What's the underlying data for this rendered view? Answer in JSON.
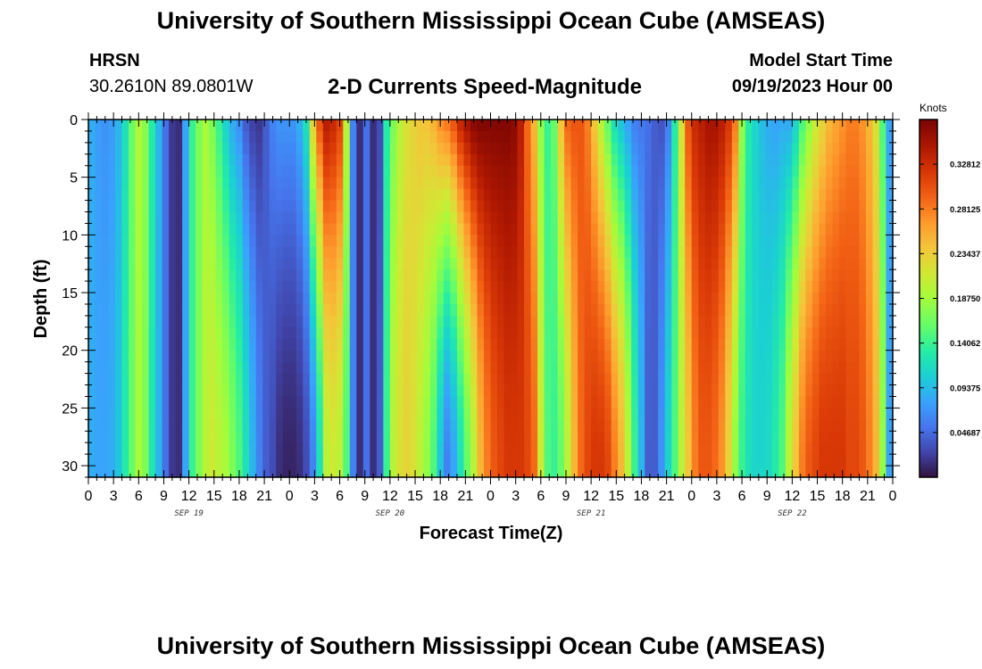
{
  "header": {
    "title": "University of Southern Mississippi Ocean Cube (AMSEAS)",
    "station_id": "HRSN",
    "station_coords": "30.2610N  89.0801W",
    "model_start_label": "Model Start Time",
    "model_start_value": "09/19/2023 Hour 00"
  },
  "footer": {
    "title_repeat": "University of Southern Mississippi Ocean Cube (AMSEAS)"
  },
  "chart_data": {
    "type": "heatmap",
    "title": "2-D Currents Speed-Magnitude",
    "xlabel": "Forecast Time(Z)",
    "ylabel": "Depth (ft)",
    "x_range_hours": [
      0,
      96
    ],
    "y_range_ft": [
      0,
      31
    ],
    "y_inverted": true,
    "x_tick_labels": [
      "0",
      "3",
      "6",
      "9",
      "12",
      "15",
      "18",
      "21",
      "0",
      "3",
      "6",
      "9",
      "12",
      "15",
      "18",
      "21",
      "0",
      "3",
      "6",
      "9",
      "12",
      "15",
      "18",
      "21",
      "0",
      "3",
      "6",
      "9",
      "12",
      "15",
      "18",
      "21",
      "0"
    ],
    "y_tick_labels": [
      "0",
      "5",
      "10",
      "15",
      "20",
      "25",
      "30"
    ],
    "y_tick_values": [
      0,
      5,
      10,
      15,
      20,
      25,
      30
    ],
    "day_labels": [
      {
        "label": "SEP 19",
        "hour": 12
      },
      {
        "label": "SEP 20",
        "hour": 36
      },
      {
        "label": "SEP 21",
        "hour": 60
      },
      {
        "label": "SEP 22",
        "hour": 84
      }
    ],
    "colorbar": {
      "unit": "Knots",
      "range": [
        0,
        0.375
      ],
      "tick_values": [
        0.046875,
        0.09375,
        0.140625,
        0.1875,
        0.234375,
        0.28125,
        0.328125
      ],
      "tick_labels": [
        "0.04687",
        "0.09375",
        "0.14062",
        "0.18750",
        "0.23437",
        "0.28125",
        "0.32812"
      ]
    },
    "speed_knots_surface": [
      0.085,
      0.075,
      0.07,
      0.075,
      0.09,
      0.12,
      0.16,
      0.195,
      0.175,
      0.13,
      0.09,
      0.05,
      0.02,
      0.015,
      0.08,
      0.14,
      0.17,
      0.19,
      0.17,
      0.14,
      0.11,
      0.085,
      0.07,
      0.04,
      0.025,
      0.02,
      0.04,
      0.06,
      0.07,
      0.07,
      0.07,
      0.085,
      0.12,
      0.23,
      0.3,
      0.34,
      0.33,
      0.31,
      0.2,
      0.06,
      0.015,
      0.05,
      0.015,
      0.03,
      0.13,
      0.17,
      0.2,
      0.22,
      0.23,
      0.24,
      0.24,
      0.25,
      0.27,
      0.28,
      0.3,
      0.33,
      0.35,
      0.365,
      0.37,
      0.37,
      0.37,
      0.37,
      0.37,
      0.365,
      0.34,
      0.29,
      0.25,
      0.18,
      0.14,
      0.16,
      0.24,
      0.29,
      0.3,
      0.3,
      0.28,
      0.24,
      0.2,
      0.16,
      0.12,
      0.1,
      0.08,
      0.06,
      0.055,
      0.05,
      0.04,
      0.035,
      0.06,
      0.13,
      0.22,
      0.3,
      0.33,
      0.34,
      0.35,
      0.35,
      0.34,
      0.32,
      0.28,
      0.18,
      0.13,
      0.11,
      0.095,
      0.085,
      0.08,
      0.085,
      0.085,
      0.11,
      0.15,
      0.18,
      0.21,
      0.23,
      0.25,
      0.26,
      0.27,
      0.28,
      0.28,
      0.27,
      0.25,
      0.22,
      0.15,
      0.08
    ],
    "speed_knots_bottom": [
      0.085,
      0.08,
      0.08,
      0.085,
      0.1,
      0.13,
      0.16,
      0.19,
      0.17,
      0.125,
      0.09,
      0.05,
      0.02,
      0.015,
      0.08,
      0.14,
      0.17,
      0.2,
      0.21,
      0.2,
      0.19,
      0.17,
      0.15,
      0.12,
      0.09,
      0.06,
      0.04,
      0.03,
      0.015,
      0.01,
      0.01,
      0.015,
      0.03,
      0.06,
      0.12,
      0.2,
      0.21,
      0.2,
      0.15,
      0.06,
      0.015,
      0.05,
      0.015,
      0.04,
      0.14,
      0.2,
      0.22,
      0.23,
      0.22,
      0.2,
      0.18,
      0.15,
      0.1,
      0.06,
      0.08,
      0.12,
      0.16,
      0.2,
      0.25,
      0.28,
      0.3,
      0.31,
      0.32,
      0.32,
      0.32,
      0.31,
      0.29,
      0.21,
      0.15,
      0.14,
      0.16,
      0.2,
      0.25,
      0.29,
      0.31,
      0.32,
      0.32,
      0.31,
      0.28,
      0.25,
      0.2,
      0.14,
      0.09,
      0.04,
      0.04,
      0.07,
      0.11,
      0.15,
      0.2,
      0.24,
      0.28,
      0.3,
      0.3,
      0.29,
      0.27,
      0.23,
      0.18,
      0.14,
      0.12,
      0.11,
      0.11,
      0.115,
      0.13,
      0.15,
      0.2,
      0.24,
      0.28,
      0.3,
      0.31,
      0.32,
      0.32,
      0.32,
      0.32,
      0.31,
      0.31,
      0.3,
      0.28,
      0.25,
      0.18,
      0.08
    ]
  }
}
